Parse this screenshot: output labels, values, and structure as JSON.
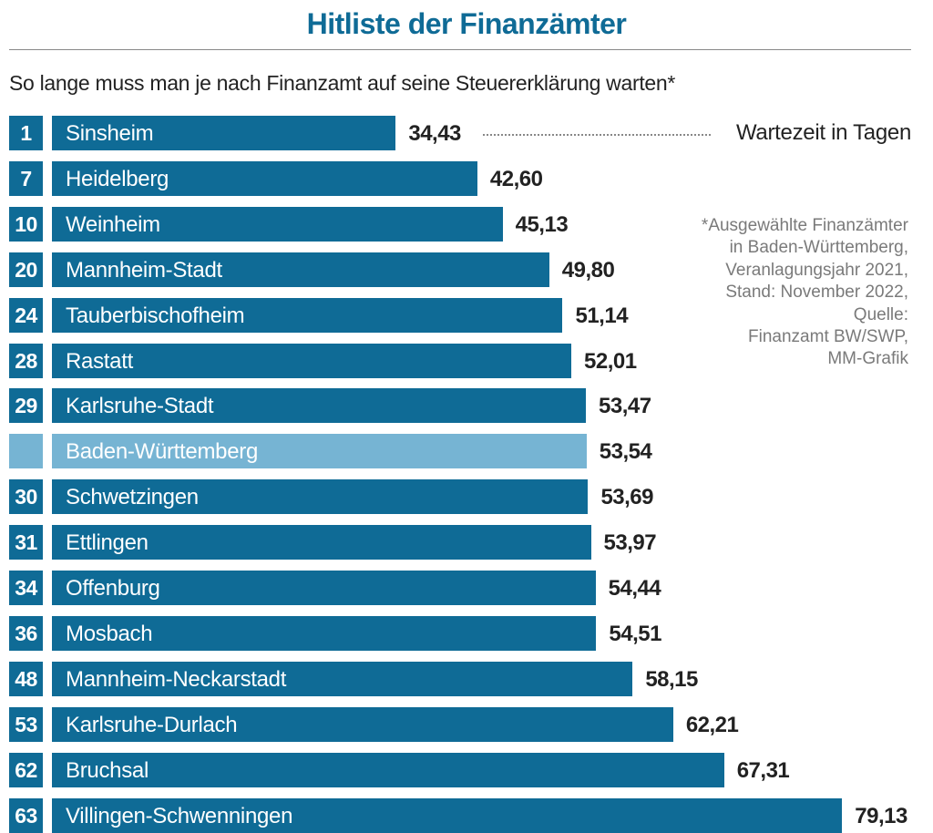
{
  "chart_data": {
    "type": "bar",
    "orientation": "horizontal",
    "title": "Hitliste der Finanzämter",
    "subtitle": "So lange muss man je nach Finanzamt auf seine Steuererklärung warten*",
    "legend": "Wartezeit in Tagen",
    "note": [
      "*Ausgewählte Finanzämter",
      "in Baden-Württemberg,",
      "Veranlagungsjahr 2021,",
      "Stand: November 2022,",
      "Quelle:",
      "Finanzamt BW/SWP,",
      "MM-Grafik"
    ],
    "xlim": [
      0,
      80
    ],
    "grid": false,
    "colors": {
      "bar": "#0f6b96",
      "highlight": "#76b4d3",
      "title": "#0f6b96"
    },
    "rows": [
      {
        "rank": "1",
        "name": "Sinsheim",
        "value": 34.43,
        "label": "34,43"
      },
      {
        "rank": "7",
        "name": "Heidelberg",
        "value": 42.6,
        "label": "42,60"
      },
      {
        "rank": "10",
        "name": "Weinheim",
        "value": 45.13,
        "label": "45,13"
      },
      {
        "rank": "20",
        "name": "Mannheim-Stadt",
        "value": 49.8,
        "label": "49,80"
      },
      {
        "rank": "24",
        "name": "Tauberbischofheim",
        "value": 51.14,
        "label": "51,14"
      },
      {
        "rank": "28",
        "name": "Rastatt",
        "value": 52.01,
        "label": "52,01"
      },
      {
        "rank": "29",
        "name": "Karlsruhe-Stadt",
        "value": 53.47,
        "label": "53,47"
      },
      {
        "rank": "",
        "name": "Baden-Württemberg",
        "value": 53.54,
        "label": "53,54",
        "highlight": true
      },
      {
        "rank": "30",
        "name": "Schwetzingen",
        "value": 53.69,
        "label": "53,69"
      },
      {
        "rank": "31",
        "name": "Ettlingen",
        "value": 53.97,
        "label": "53,97"
      },
      {
        "rank": "34",
        "name": "Offenburg",
        "value": 54.44,
        "label": "54,44"
      },
      {
        "rank": "36",
        "name": "Mosbach",
        "value": 54.51,
        "label": "54,51"
      },
      {
        "rank": "48",
        "name": "Mannheim-Neckarstadt",
        "value": 58.15,
        "label": "58,15"
      },
      {
        "rank": "53",
        "name": "Karlsruhe-Durlach",
        "value": 62.21,
        "label": "62,21"
      },
      {
        "rank": "62",
        "name": "Bruchsal",
        "value": 67.31,
        "label": "67,31"
      },
      {
        "rank": "63",
        "name": "Villingen-Schwenningen",
        "value": 79.13,
        "label": "79,13"
      }
    ]
  }
}
